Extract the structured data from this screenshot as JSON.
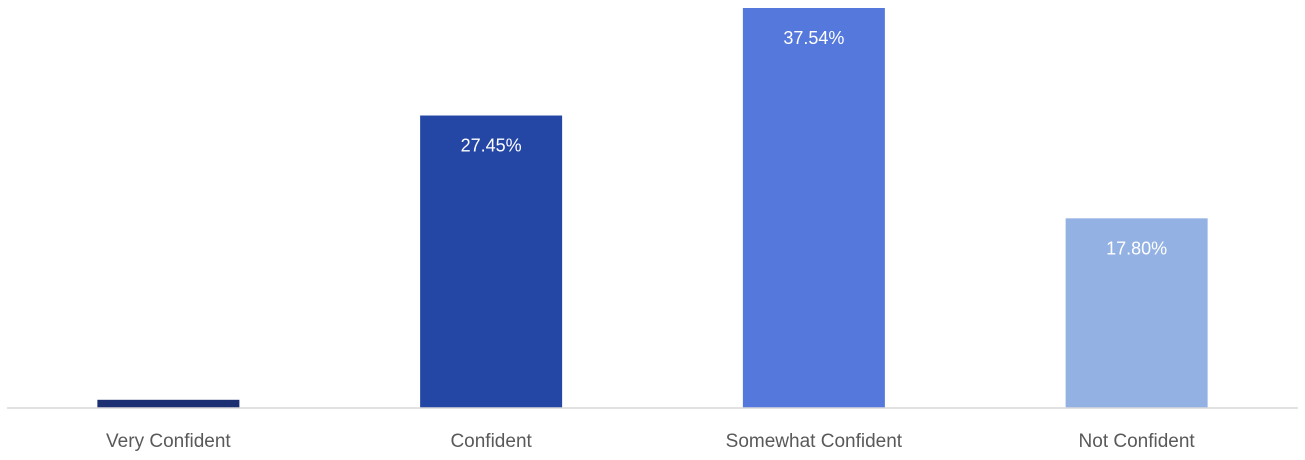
{
  "chart_data": {
    "type": "bar",
    "categories": [
      "Very Confident",
      "Confident",
      "Somewhat Confident",
      "Not Confident"
    ],
    "values": [
      0.77,
      27.45,
      37.54,
      17.8
    ],
    "data_labels": [
      "",
      "27.45%",
      "37.54%",
      "17.80%"
    ],
    "ylim": [
      0,
      37.54
    ],
    "grid": false,
    "legend": "none",
    "title": "",
    "xlabel": "",
    "ylabel": "",
    "colors": [
      "#1c2f73",
      "#2447a6",
      "#5478dc",
      "#93b1e2"
    ],
    "axis_color": "#d9d9d9",
    "label_color": "#ffffff",
    "tick_label_color": "#595959"
  }
}
